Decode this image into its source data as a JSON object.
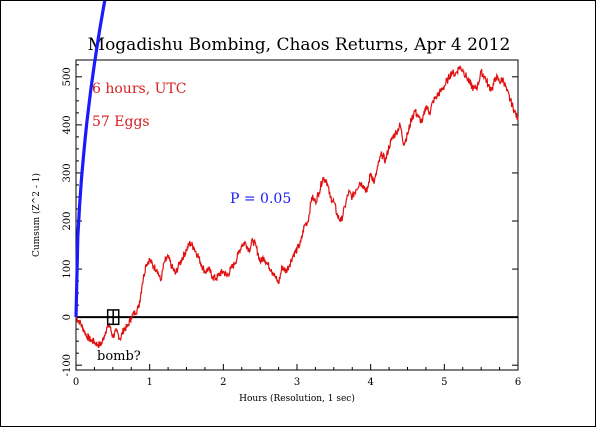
{
  "chart_data": {
    "type": "line",
    "title": "Mogadishu Bombing, Chaos Returns, Apr 4 2012",
    "xlabel": "Hours (Resolution, 1 sec)",
    "ylabel": "Cumsum (Z^2 - 1)",
    "xlim": [
      0,
      6
    ],
    "ylim": [
      -110,
      535
    ],
    "x_ticks": [
      0,
      1,
      2,
      3,
      4,
      5,
      6
    ],
    "y_ticks": [
      -100,
      0,
      100,
      200,
      300,
      400,
      500
    ],
    "annotations": [
      {
        "text": "6 hours, UTC",
        "color": "#d42020"
      },
      {
        "text": "57 Eggs",
        "color": "#d42020"
      },
      {
        "text": "P = 0.05",
        "color": "#1a1aff"
      },
      {
        "text": "bomb?",
        "color": "#000000"
      }
    ],
    "series": [
      {
        "color": "#e01010",
        "x": [
          0,
          0.05,
          0.1,
          0.15,
          0.2,
          0.25,
          0.3,
          0.35,
          0.4,
          0.45,
          0.5,
          0.55,
          0.6,
          0.65,
          0.7,
          0.75,
          0.8,
          0.85,
          0.9,
          0.95,
          1.0,
          1.05,
          1.1,
          1.15,
          1.2,
          1.25,
          1.3,
          1.35,
          1.4,
          1.45,
          1.5,
          1.55,
          1.6,
          1.65,
          1.7,
          1.75,
          1.8,
          1.85,
          1.9,
          1.95,
          2.0,
          2.05,
          2.1,
          2.15,
          2.2,
          2.25,
          2.3,
          2.35,
          2.4,
          2.45,
          2.5,
          2.55,
          2.6,
          2.65,
          2.7,
          2.75,
          2.8,
          2.85,
          2.9,
          2.95,
          3.0,
          3.05,
          3.1,
          3.15,
          3.2,
          3.25,
          3.3,
          3.35,
          3.4,
          3.45,
          3.5,
          3.55,
          3.6,
          3.65,
          3.7,
          3.75,
          3.8,
          3.85,
          3.9,
          3.95,
          4.0,
          4.05,
          4.1,
          4.15,
          4.2,
          4.25,
          4.3,
          4.35,
          4.4,
          4.45,
          4.5,
          4.55,
          4.6,
          4.65,
          4.7,
          4.75,
          4.8,
          4.85,
          4.9,
          4.95,
          5.0,
          5.05,
          5.1,
          5.15,
          5.2,
          5.25,
          5.3,
          5.35,
          5.4,
          5.45,
          5.5,
          5.55,
          5.6,
          5.65,
          5.7,
          5.75,
          5.8,
          5.85,
          5.9,
          5.95,
          6.0
        ],
        "values": [
          0,
          -10,
          -25,
          -40,
          -48,
          -52,
          -58,
          -55,
          -30,
          -15,
          -40,
          -30,
          -45,
          -25,
          -20,
          0,
          10,
          20,
          70,
          110,
          120,
          105,
          100,
          75,
          115,
          125,
          105,
          90,
          110,
          125,
          140,
          155,
          145,
          130,
          110,
          95,
          100,
          85,
          80,
          90,
          95,
          85,
          100,
          110,
          130,
          150,
          155,
          140,
          160,
          145,
          115,
          125,
          110,
          100,
          85,
          70,
          105,
          95,
          110,
          130,
          140,
          155,
          190,
          200,
          250,
          240,
          260,
          290,
          285,
          250,
          240,
          210,
          200,
          230,
          260,
          250,
          265,
          280,
          275,
          260,
          300,
          280,
          315,
          340,
          325,
          355,
          375,
          385,
          400,
          360,
          380,
          410,
          430,
          415,
          405,
          440,
          425,
          450,
          460,
          470,
          480,
          495,
          510,
          505,
          520,
          515,
          500,
          485,
          475,
          480,
          510,
          500,
          480,
          475,
          500,
          490,
          495,
          470,
          450,
          430,
          410
        ]
      },
      {
        "name": "P = 0.05",
        "color": "#1a1aff",
        "function": "1.645*sqrt(2*N*t*3600)",
        "n_eggs": 57
      }
    ],
    "grid": false,
    "zero_line": true,
    "event_box": {
      "x": [
        0.43,
        0.58
      ],
      "y": [
        -15,
        15
      ]
    }
  }
}
